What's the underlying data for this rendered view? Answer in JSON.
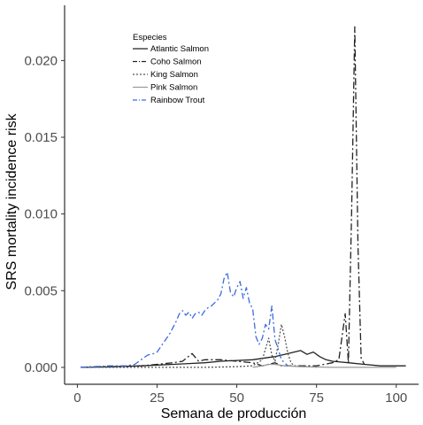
{
  "chart_data": {
    "type": "line",
    "xlabel": "Semana de producción",
    "ylabel": "SRS mortality incidence risk",
    "xlim": [
      -4,
      107
    ],
    "ylim": [
      -0.0011,
      0.0236
    ],
    "xticks": [
      0,
      25,
      50,
      75,
      100
    ],
    "yticks": [
      0.0,
      0.005,
      0.01,
      0.015,
      0.02
    ],
    "ytick_labels": [
      "0.000",
      "0.005",
      "0.010",
      "0.015",
      "0.020"
    ],
    "grid": false,
    "legend": {
      "title": "Especies",
      "position": "top-left"
    },
    "series": [
      {
        "name": "Atlantic Salmon",
        "color": "#222222",
        "dash": "solid",
        "x": [
          1,
          10,
          20,
          25,
          30,
          35,
          40,
          45,
          50,
          55,
          60,
          62,
          65,
          68,
          70,
          72,
          74,
          76,
          78,
          80,
          85,
          90,
          95,
          103
        ],
        "y": [
          0,
          3e-05,
          0.0001,
          0.00015,
          0.0002,
          0.00025,
          0.0003,
          0.0004,
          0.00045,
          0.0005,
          0.00065,
          0.0007,
          0.00085,
          0.001,
          0.0011,
          0.00085,
          0.001,
          0.0007,
          0.0005,
          0.0004,
          0.0003,
          0.0002,
          0.0001,
          0.0001
        ]
      },
      {
        "name": "Coho Salmon",
        "color": "#222222",
        "dash": "8,3,2,3",
        "x": [
          1,
          10,
          20,
          25,
          30,
          33,
          36,
          38,
          40,
          45,
          50,
          55,
          58,
          60,
          62,
          64,
          66,
          70,
          75,
          80,
          82,
          84,
          85,
          86,
          87,
          88,
          89,
          90
        ],
        "y": [
          0,
          5e-05,
          0.0001,
          0.0002,
          0.0003,
          0.0004,
          0.0009,
          0.0004,
          0.0005,
          0.0005,
          0.0004,
          0.0003,
          0.0001,
          0.0002,
          0.0003,
          0.0001,
          0.0001,
          0.0001,
          0.0001,
          0.0003,
          0.0005,
          0.0035,
          0.0003,
          0.01,
          0.0222,
          0.008,
          0.0006,
          0.0002
        ]
      },
      {
        "name": "King Salmon",
        "color": "#555555",
        "dash": "2,2",
        "x": [
          1,
          20,
          40,
          50,
          55,
          58,
          60,
          61,
          62,
          63,
          64,
          65,
          66,
          67,
          68,
          70,
          75
        ],
        "y": [
          0,
          0,
          0,
          5e-05,
          0.0001,
          0.0005,
          0.0019,
          0.0008,
          0.0004,
          0.0015,
          0.0028,
          0.002,
          0.0009,
          0.0003,
          0.0001,
          0.0001,
          0
        ],
        "_label_color_note": null
      },
      {
        "name": "Pink Salmon",
        "color": "#9a9a9a",
        "dash": "solid",
        "x": [
          55,
          58,
          60,
          62,
          65,
          70,
          80,
          90,
          100
        ],
        "y": [
          0,
          0.0001,
          0.0002,
          0.0002,
          0.0001,
          5e-05,
          0,
          0,
          0
        ]
      },
      {
        "name": "Rainbow Trout",
        "color": "#3c6be0",
        "dash": "7,3,2,3",
        "x": [
          1,
          5,
          10,
          15,
          18,
          20,
          22,
          24,
          25,
          27,
          29,
          31,
          32,
          33,
          34,
          35,
          36,
          37,
          38,
          39,
          40,
          41,
          42,
          43,
          44,
          45,
          46,
          47,
          48,
          49,
          50,
          51,
          52,
          53,
          54,
          55,
          56,
          57,
          58,
          59,
          60,
          61,
          62,
          63,
          64,
          66
        ],
        "y": [
          2e-05,
          5e-05,
          0.0001,
          0.0001,
          0.0002,
          0.0005,
          0.0008,
          0.0009,
          0.001,
          0.0016,
          0.0022,
          0.003,
          0.0035,
          0.0037,
          0.0034,
          0.0036,
          0.0032,
          0.0035,
          0.0036,
          0.0034,
          0.0037,
          0.0039,
          0.004,
          0.0042,
          0.0044,
          0.0048,
          0.0058,
          0.0062,
          0.0049,
          0.0046,
          0.0052,
          0.0056,
          0.0045,
          0.0052,
          0.0042,
          0.0038,
          0.002,
          0.0015,
          0.0019,
          0.0028,
          0.0025,
          0.004,
          0.0018,
          0.0012,
          0.0005,
          0.0001
        ]
      }
    ]
  }
}
